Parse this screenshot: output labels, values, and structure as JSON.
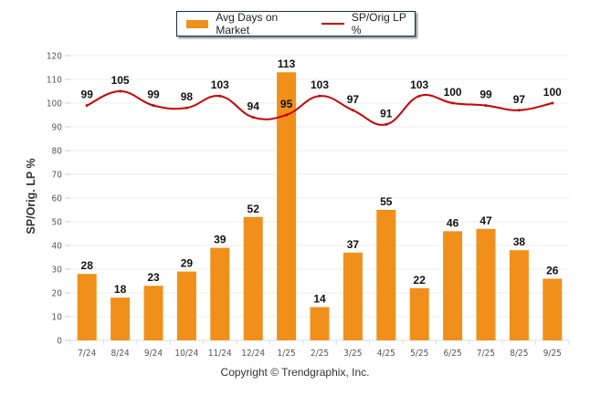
{
  "chart_data": {
    "type": "bar+line",
    "title": "",
    "xlabel": "",
    "ylabel": "SP/Orig. LP %",
    "ylim": [
      0,
      120
    ],
    "yticks": [
      0,
      10,
      20,
      30,
      40,
      50,
      60,
      70,
      80,
      90,
      100,
      110,
      120
    ],
    "grid": true,
    "legend_position": "top-center",
    "categories": [
      "7/24",
      "8/24",
      "9/24",
      "10/24",
      "11/24",
      "12/24",
      "1/25",
      "2/25",
      "3/25",
      "4/25",
      "5/25",
      "6/25",
      "7/25",
      "8/25",
      "9/25"
    ],
    "series": [
      {
        "name": "Avg Days on Market",
        "type": "bar",
        "color": "#f0901a",
        "values": [
          28,
          18,
          23,
          29,
          39,
          52,
          113,
          14,
          37,
          55,
          22,
          46,
          47,
          38,
          26
        ]
      },
      {
        "name": "SP/Orig LP %",
        "type": "line",
        "color": "#cc0000",
        "values": [
          99,
          105,
          99,
          98,
          103,
          94,
          95,
          103,
          97,
          91,
          103,
          100,
          99,
          97,
          100
        ]
      }
    ]
  },
  "legend": {
    "bar_label": "Avg Days on Market",
    "line_label": "SP/Orig LP %"
  },
  "footer": {
    "copyright": "Copyright © Trendgraphix, Inc."
  }
}
